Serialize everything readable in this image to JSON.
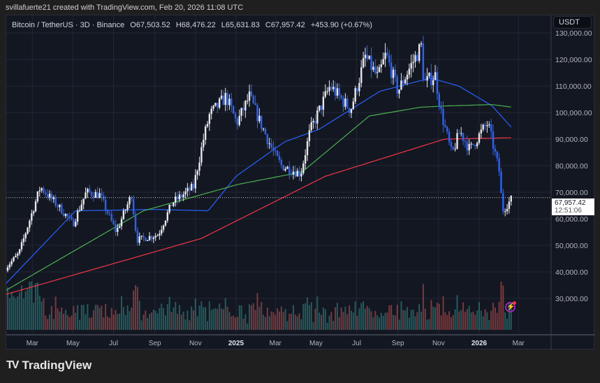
{
  "credit": "svillafuerte21 created with TradingView.com, Feb 20, 2026 11:08 UTC",
  "legend": {
    "symbol": "Bitcoin / TetherUS · 3D · Binance",
    "open": "O67,503.52",
    "high": "H68,476.22",
    "low": "L65,631.83",
    "close": "C67,957.42",
    "change": "+453.90 (+0.67%)"
  },
  "currency_button": "USDT",
  "last_price": {
    "price": "67,957.42",
    "countdown": "12:51:06"
  },
  "brand": "TradingView",
  "colors": {
    "up": "#e8e8e8",
    "down": "#2962ff",
    "ma_blue": "#2962ff",
    "ma_green": "#4caf50",
    "ma_red": "#f23645",
    "vol_up": "#26a69a",
    "vol_down": "#ef5350",
    "background": "#131722"
  },
  "chart_data": {
    "type": "candlestick",
    "interval": "3D",
    "x_range": [
      "2024-01-21",
      "2026-02-20"
    ],
    "ylim": [
      25000,
      135000
    ],
    "y_ticks": [
      "130,000.00",
      "120,000.00",
      "110,000.00",
      "100,000.00",
      "90,000.00",
      "80,000.00",
      "70,000.00",
      "60,000.00",
      "50,000.00",
      "40,000.00",
      "30,000.00"
    ],
    "y_tick_values": [
      130000,
      120000,
      110000,
      100000,
      90000,
      80000,
      70000,
      60000,
      50000,
      40000,
      30000
    ],
    "x_ticks": [
      {
        "label": "Mar",
        "date": "2024-03-01"
      },
      {
        "label": "May",
        "date": "2024-05-01"
      },
      {
        "label": "Jul",
        "date": "2024-07-01"
      },
      {
        "label": "Sep",
        "date": "2024-09-01"
      },
      {
        "label": "Nov",
        "date": "2024-11-01"
      },
      {
        "label": "2025",
        "date": "2025-01-01",
        "bold": true
      },
      {
        "label": "Mar",
        "date": "2025-03-01"
      },
      {
        "label": "May",
        "date": "2025-05-01"
      },
      {
        "label": "Jul",
        "date": "2025-07-01"
      },
      {
        "label": "Sep",
        "date": "2025-09-01"
      },
      {
        "label": "Nov",
        "date": "2025-11-01"
      },
      {
        "label": "2026",
        "date": "2026-01-01",
        "bold": true
      },
      {
        "label": "Mar",
        "date": "2026-03-01"
      }
    ],
    "grid": true,
    "price_path": [
      [
        "2024-01-21",
        41500
      ],
      [
        "2024-02-10",
        47000
      ],
      [
        "2024-03-13",
        72000
      ],
      [
        "2024-04-15",
        63000
      ],
      [
        "2024-05-01",
        58000
      ],
      [
        "2024-05-21",
        70000
      ],
      [
        "2024-06-10",
        69000
      ],
      [
        "2024-07-05",
        55000
      ],
      [
        "2024-07-28",
        69000
      ],
      [
        "2024-08-05",
        52000
      ],
      [
        "2024-09-06",
        54000
      ],
      [
        "2024-09-27",
        66000
      ],
      [
        "2024-10-29",
        72000
      ],
      [
        "2024-11-13",
        90000
      ],
      [
        "2024-11-22",
        99000
      ],
      [
        "2024-12-17",
        106000
      ],
      [
        "2025-01-02",
        96000
      ],
      [
        "2025-01-21",
        106000
      ],
      [
        "2025-02-05",
        97000
      ],
      [
        "2025-02-28",
        84000
      ],
      [
        "2025-03-10",
        80000
      ],
      [
        "2025-04-08",
        77000
      ],
      [
        "2025-04-22",
        93000
      ],
      [
        "2025-05-22",
        110000
      ],
      [
        "2025-06-22",
        101000
      ],
      [
        "2025-07-14",
        121000
      ],
      [
        "2025-08-02",
        113000
      ],
      [
        "2025-08-14",
        122000
      ],
      [
        "2025-09-01",
        108000
      ],
      [
        "2025-09-17",
        116000
      ],
      [
        "2025-10-06",
        125000
      ],
      [
        "2025-10-10",
        111000
      ],
      [
        "2025-10-27",
        114000
      ],
      [
        "2025-11-04",
        101000
      ],
      [
        "2025-11-21",
        84000
      ],
      [
        "2025-12-03",
        93000
      ],
      [
        "2025-12-18",
        86000
      ],
      [
        "2026-01-05",
        93000
      ],
      [
        "2026-01-14",
        96000
      ],
      [
        "2026-01-31",
        78000
      ],
      [
        "2026-02-05",
        63000
      ],
      [
        "2026-02-20",
        67957.42
      ]
    ],
    "moving_averages": [
      {
        "color": "#2962ff",
        "points": [
          [
            "2024-01-21",
            35500
          ],
          [
            "2024-05-05",
            63000
          ],
          [
            "2024-09-01",
            63500
          ],
          [
            "2024-11-20",
            63000
          ],
          [
            "2025-01-01",
            76000
          ],
          [
            "2025-03-15",
            89000
          ],
          [
            "2025-05-05",
            93600
          ],
          [
            "2025-08-05",
            108000
          ],
          [
            "2025-10-20",
            113000
          ],
          [
            "2025-12-01",
            110000
          ],
          [
            "2026-01-20",
            102600
          ],
          [
            "2026-02-20",
            94000
          ]
        ]
      },
      {
        "color": "#4caf50",
        "points": [
          [
            "2024-01-21",
            33000
          ],
          [
            "2024-08-15",
            63000
          ],
          [
            "2025-01-05",
            73000
          ],
          [
            "2025-04-10",
            77600
          ],
          [
            "2025-07-20",
            98700
          ],
          [
            "2025-10-05",
            102000
          ],
          [
            "2025-11-15",
            102500
          ],
          [
            "2026-01-20",
            103000
          ],
          [
            "2026-02-20",
            102000
          ]
        ]
      },
      {
        "color": "#f23645",
        "points": [
          [
            "2024-01-21",
            31500
          ],
          [
            "2024-11-10",
            52600
          ],
          [
            "2025-05-15",
            76000
          ],
          [
            "2025-11-10",
            90000
          ],
          [
            "2026-02-20",
            90500
          ]
        ]
      }
    ]
  }
}
